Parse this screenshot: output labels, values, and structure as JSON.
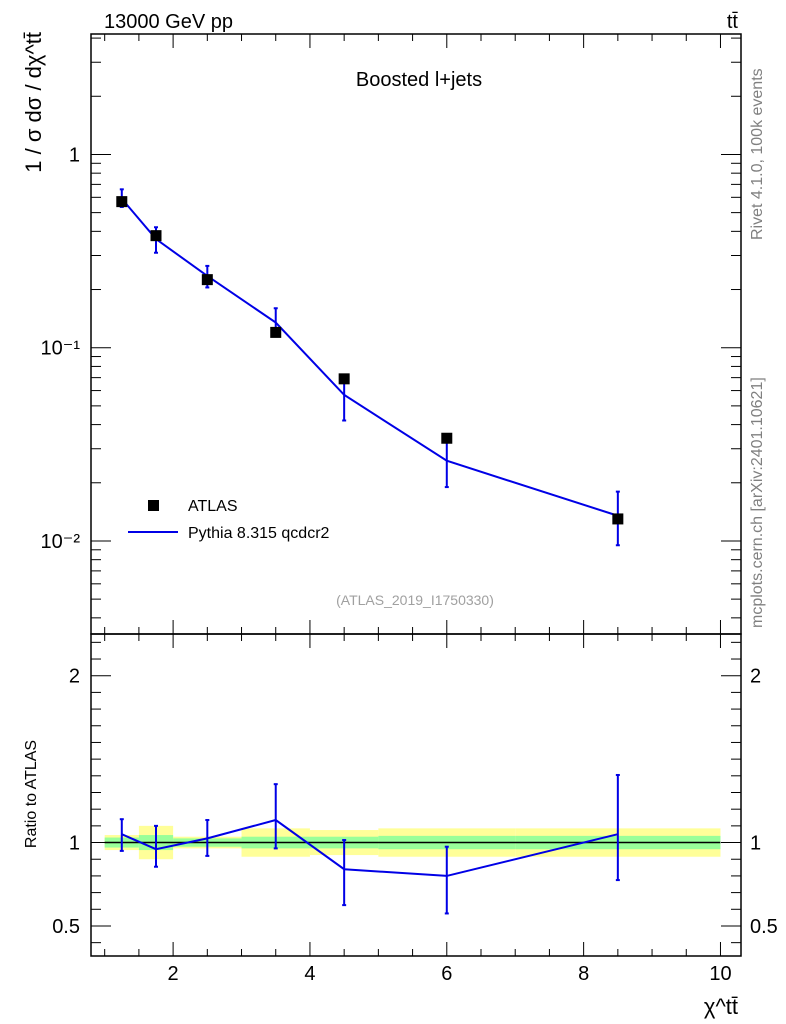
{
  "header": {
    "beam": "13000 GeV pp",
    "process": "tt̄"
  },
  "side_labels": {
    "rivet": "Rivet 4.1.0,  100k events",
    "mcplots": "mcplots.cern.ch [arXiv:2401.10621]"
  },
  "colors": {
    "mc_line": "#0000e6",
    "data_marker": "#000000",
    "band_inner": "#99ff99",
    "band_outer": "#ffff99"
  },
  "chart_data": [
    {
      "type": "scatter",
      "title": "Boosted l+jets",
      "analysis_tag": "(ATLAS_2019_I1750330)",
      "ylabel": "1 / σ dσ / dχ^tt̄",
      "xlabel": "χ^tt̄",
      "yscale": "log",
      "xlim": [
        0.8,
        10.3
      ],
      "ylim": [
        0.0033,
        4.2
      ],
      "y_ticks": [
        {
          "value": 1,
          "label": "1"
        },
        {
          "value": 0.1,
          "label": "10⁻¹"
        },
        {
          "value": 0.01,
          "label": "10⁻²"
        }
      ],
      "legend": {
        "position": "bottom-left",
        "entries": [
          "ATLAS",
          "Pythia 8.315 qcdcr2"
        ]
      },
      "series": [
        {
          "name": "ATLAS",
          "kind": "points",
          "x": [
            1.25,
            1.75,
            2.5,
            3.5,
            4.5,
            6.0,
            8.5
          ],
          "y": [
            0.57,
            0.38,
            0.225,
            0.12,
            0.069,
            0.034,
            0.013
          ]
        },
        {
          "name": "Pythia 8.315 qcdcr2",
          "kind": "line",
          "x": [
            1.25,
            1.75,
            2.5,
            3.5,
            4.5,
            6.0,
            8.5
          ],
          "y": [
            0.59,
            0.365,
            0.235,
            0.135,
            0.057,
            0.026,
            0.0135
          ],
          "y_err_low": [
            0.535,
            0.31,
            0.205,
            0.115,
            0.042,
            0.019,
            0.0095
          ],
          "y_err_high": [
            0.66,
            0.42,
            0.265,
            0.16,
            0.069,
            0.034,
            0.018
          ]
        }
      ]
    },
    {
      "type": "line",
      "ylabel": "Ratio to ATLAS",
      "xlabel": "χ^tt̄",
      "xlim": [
        0.8,
        10.3
      ],
      "ylim": [
        0.32,
        2.25
      ],
      "x_ticks": [
        {
          "value": 2,
          "label": "2"
        },
        {
          "value": 4,
          "label": "4"
        },
        {
          "value": 6,
          "label": "6"
        },
        {
          "value": 8,
          "label": "8"
        },
        {
          "value": 10,
          "label": "10"
        }
      ],
      "y_ticks": [
        {
          "value": 2,
          "label": "2"
        },
        {
          "value": 1,
          "label": "1"
        },
        {
          "value": 0.5,
          "label": "0.5"
        }
      ],
      "reference_line": 1.0,
      "bands": [
        {
          "x0": 1.0,
          "x1": 1.5,
          "inner": [
            0.97,
            1.03
          ],
          "outer": [
            0.955,
            1.045
          ]
        },
        {
          "x0": 1.5,
          "x1": 2.0,
          "inner": [
            0.955,
            1.045
          ],
          "outer": [
            0.9,
            1.1
          ]
        },
        {
          "x0": 2.0,
          "x1": 3.0,
          "inner": [
            0.975,
            1.025
          ],
          "outer": [
            0.965,
            1.035
          ]
        },
        {
          "x0": 3.0,
          "x1": 4.0,
          "inner": [
            0.965,
            1.035
          ],
          "outer": [
            0.915,
            1.085
          ]
        },
        {
          "x0": 4.0,
          "x1": 5.0,
          "inner": [
            0.965,
            1.035
          ],
          "outer": [
            0.925,
            1.075
          ]
        },
        {
          "x0": 5.0,
          "x1": 7.0,
          "inner": [
            0.96,
            1.04
          ],
          "outer": [
            0.915,
            1.085
          ]
        },
        {
          "x0": 7.0,
          "x1": 10.0,
          "inner": [
            0.96,
            1.04
          ],
          "outer": [
            0.915,
            1.085
          ]
        }
      ],
      "series": [
        {
          "name": "Pythia 8.315 qcdcr2 / ATLAS",
          "x": [
            1.25,
            1.75,
            2.5,
            3.5,
            4.5,
            6.0,
            8.5
          ],
          "y": [
            1.05,
            0.96,
            1.025,
            1.135,
            0.84,
            0.8,
            1.05
          ],
          "y_err_low": [
            0.95,
            0.855,
            0.92,
            0.965,
            0.625,
            0.575,
            0.775
          ],
          "y_err_high": [
            1.14,
            1.1,
            1.135,
            1.35,
            1.015,
            0.975,
            1.405
          ]
        }
      ]
    }
  ]
}
